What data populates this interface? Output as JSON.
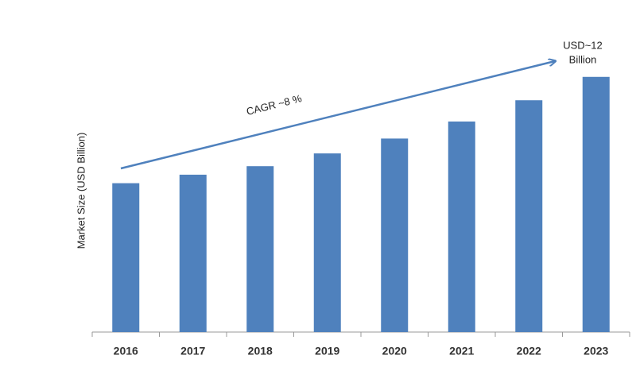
{
  "chart_data": {
    "type": "bar",
    "y_label": "Market Size (USD Billion)",
    "annotations": {
      "cagr": "CAGR ~8 %",
      "end": [
        "USD~12",
        "Billion"
      ]
    },
    "categories": [
      "2016",
      "2017",
      "2018",
      "2019",
      "2020",
      "2021",
      "2022",
      "2023"
    ],
    "values": [
      7.0,
      7.4,
      7.8,
      8.4,
      9.1,
      9.9,
      10.9,
      12.0
    ],
    "color": "#4f81bd",
    "ylim": [
      0,
      13
    ]
  }
}
